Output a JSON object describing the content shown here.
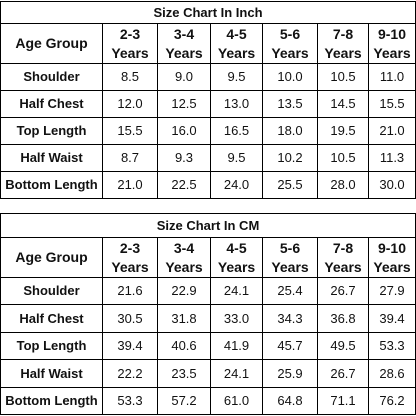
{
  "tables": [
    {
      "title": "Size Chart In Inch",
      "header": [
        "Age Group",
        "2-3 Years",
        "3-4 Years",
        "4-5 Years",
        "5-6 Years",
        "7-8 Years",
        "9-10 Years"
      ],
      "rows": [
        [
          "Shoulder",
          "8.5",
          "9.0",
          "9.5",
          "10.0",
          "10.5",
          "11.0"
        ],
        [
          "Half Chest",
          "12.0",
          "12.5",
          "13.0",
          "13.5",
          "14.5",
          "15.5"
        ],
        [
          "Top Length",
          "15.5",
          "16.0",
          "16.5",
          "18.0",
          "19.5",
          "21.0"
        ],
        [
          "Half Waist",
          "8.7",
          "9.3",
          "9.5",
          "10.2",
          "10.5",
          "11.3"
        ],
        [
          "Bottom Length",
          "21.0",
          "22.5",
          "24.0",
          "25.5",
          "28.0",
          "30.0"
        ]
      ]
    },
    {
      "title": "Size Chart In CM",
      "header": [
        "Age Group",
        "2-3 Years",
        "3-4 Years",
        "4-5 Years",
        "5-6 Years",
        "7-8 Years",
        "9-10 Years"
      ],
      "rows": [
        [
          "Shoulder",
          "21.6",
          "22.9",
          "24.1",
          "25.4",
          "26.7",
          "27.9"
        ],
        [
          "Half Chest",
          "30.5",
          "31.8",
          "33.0",
          "34.3",
          "36.8",
          "39.4"
        ],
        [
          "Top Length",
          "39.4",
          "40.6",
          "41.9",
          "45.7",
          "49.5",
          "53.3"
        ],
        [
          "Half Waist",
          "22.2",
          "23.5",
          "24.1",
          "25.9",
          "26.7",
          "28.6"
        ],
        [
          "Bottom Length",
          "53.3",
          "57.2",
          "61.0",
          "64.8",
          "71.1",
          "76.2"
        ]
      ]
    }
  ]
}
